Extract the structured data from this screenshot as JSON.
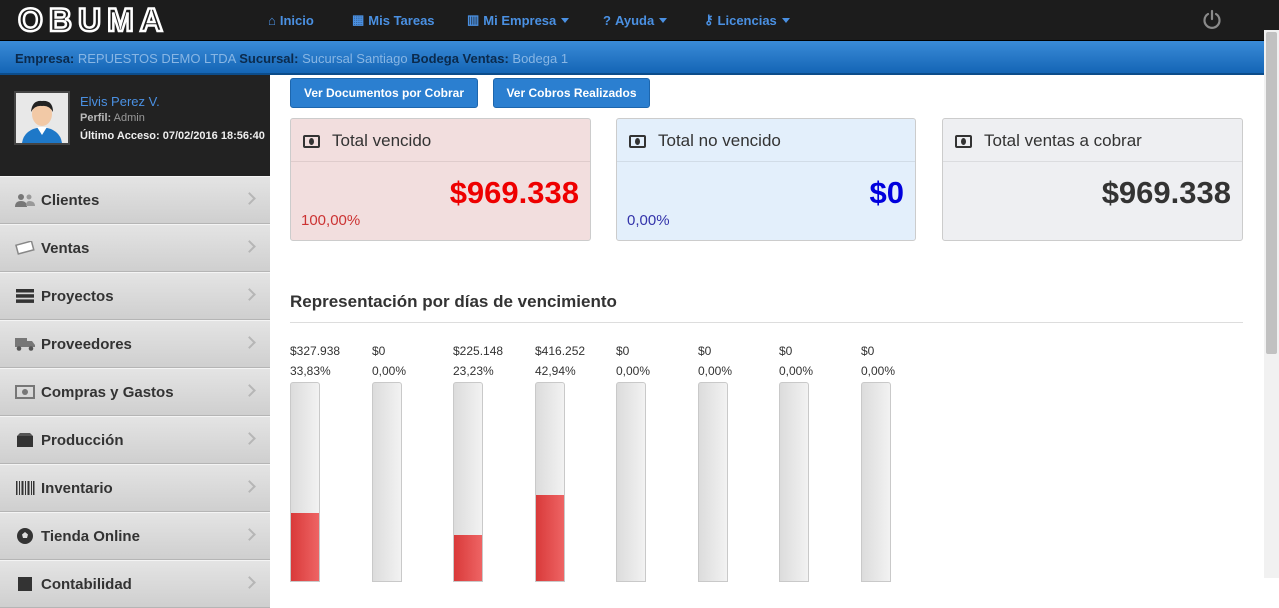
{
  "app": {
    "logo_text": "OBUMA"
  },
  "nav": [
    {
      "label": "Inicio",
      "icon": "home-icon",
      "dropdown": false
    },
    {
      "label": "Mis Tareas",
      "icon": "calendar-icon",
      "dropdown": false
    },
    {
      "label": "Mi Empresa",
      "icon": "building-icon",
      "dropdown": true
    },
    {
      "label": "Ayuda",
      "icon": "question-circle-icon",
      "dropdown": true
    },
    {
      "label": "Licencias",
      "icon": "key-icon",
      "dropdown": true
    }
  ],
  "context_bar": {
    "empresa_label": "Empresa:",
    "empresa_value": "REPUESTOS DEMO LTDA",
    "sucursal_label": "Sucursal:",
    "sucursal_value": "Sucursal Santiago",
    "bodega_label": "Bodega Ventas:",
    "bodega_value": "Bodega 1"
  },
  "user": {
    "name": "Elvis Perez V.",
    "profile_label": "Perfil:",
    "profile_value": "Admin",
    "last_access": "Último Acceso: 07/02/2016 18:56:40"
  },
  "menu": [
    {
      "label": "Clientes",
      "icon": "users-icon"
    },
    {
      "label": "Ventas",
      "icon": "money-icon"
    },
    {
      "label": "Proyectos",
      "icon": "tasks-icon"
    },
    {
      "label": "Proveedores",
      "icon": "truck-icon"
    },
    {
      "label": "Compras y Gastos",
      "icon": "cash-icon"
    },
    {
      "label": "Producción",
      "icon": "box-icon"
    },
    {
      "label": "Inventario",
      "icon": "barcode-icon"
    },
    {
      "label": "Tienda Online",
      "icon": "soccer-ball-icon"
    },
    {
      "label": "Contabilidad",
      "icon": "book-icon"
    }
  ],
  "buttons": {
    "documents": "Ver Documentos por Cobrar",
    "payments": "Ver Cobros Realizados"
  },
  "cards": [
    {
      "title": "Total vencido",
      "amount": "$969.338",
      "percent": "100,00%",
      "bg": "#f2dede",
      "amount_color": "#ee0000",
      "percent_color": "#cc3333"
    },
    {
      "title": "Total no vencido",
      "amount": "$0",
      "percent": "0,00%",
      "bg": "#e3effb",
      "amount_color": "#0000dd",
      "percent_color": "#3333aa"
    },
    {
      "title": "Total ventas a cobrar",
      "amount": "$969.338",
      "percent": "",
      "bg": "#eeeff2",
      "amount_color": "#333333",
      "percent_color": "#333333"
    }
  ],
  "section_title": "Representación por días de vencimiento",
  "chart_data": {
    "type": "bar",
    "categories": [
      "",
      "",
      "",
      "",
      "",
      "",
      "",
      ""
    ],
    "series": [
      {
        "values": [
          327938,
          0,
          225148,
          416252,
          0,
          0,
          0,
          0
        ],
        "percents": [
          33.83,
          0,
          23.23,
          42.94,
          0,
          0,
          0,
          0
        ],
        "value_labels": [
          "$327.938",
          "$0",
          "$225.148",
          "$416.252",
          "$0",
          "$0",
          "$0",
          "$0"
        ],
        "percent_labels": [
          "33,83%",
          "0,00%",
          "23,23%",
          "42,94%",
          "0,00%",
          "0,00%",
          "0,00%",
          "0,00%"
        ]
      }
    ],
    "ylim": [
      0,
      100
    ],
    "fill_color": "#e24b4b",
    "track_color": "#e5e5e5"
  }
}
